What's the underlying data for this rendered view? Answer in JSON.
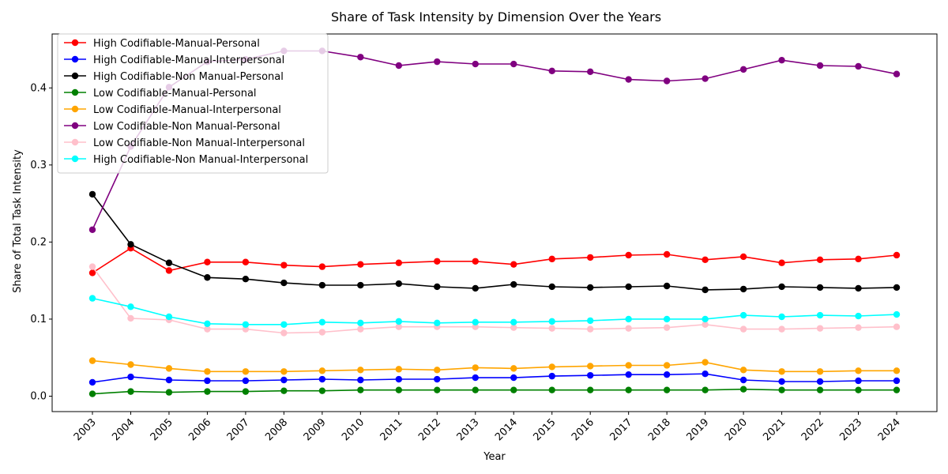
{
  "chart_data": {
    "type": "line",
    "title": "Share of Task Intensity by Dimension Over the Years",
    "xlabel": "Year",
    "ylabel": "Share of Total Task Intensity",
    "categories": [
      "2003",
      "2004",
      "2005",
      "2006",
      "2007",
      "2008",
      "2009",
      "2010",
      "2011",
      "2012",
      "2013",
      "2014",
      "2015",
      "2016",
      "2017",
      "2018",
      "2019",
      "2020",
      "2021",
      "2022",
      "2023",
      "2024"
    ],
    "ylim": [
      -0.02,
      0.47
    ],
    "yticks": [
      0.0,
      0.1,
      0.2,
      0.3,
      0.4
    ],
    "ytick_labels": [
      "0.0",
      "0.1",
      "0.2",
      "0.3",
      "0.4"
    ],
    "legend_position": "top-left",
    "grid": false,
    "series": [
      {
        "name": "High Codifiable-Manual-Personal",
        "color": "#ff0000",
        "values": [
          0.16,
          0.192,
          0.163,
          0.174,
          0.174,
          0.17,
          0.168,
          0.171,
          0.173,
          0.175,
          0.175,
          0.171,
          0.178,
          0.18,
          0.183,
          0.184,
          0.177,
          0.181,
          0.173,
          0.177,
          0.178,
          0.183
        ]
      },
      {
        "name": "High Codifiable-Manual-Interpersonal",
        "color": "#0000ff",
        "values": [
          0.018,
          0.025,
          0.021,
          0.02,
          0.02,
          0.021,
          0.022,
          0.021,
          0.022,
          0.022,
          0.024,
          0.024,
          0.026,
          0.027,
          0.028,
          0.028,
          0.029,
          0.021,
          0.019,
          0.019,
          0.02,
          0.02
        ]
      },
      {
        "name": "High Codifiable-Non Manual-Personal",
        "color": "#000000",
        "values": [
          0.262,
          0.197,
          0.173,
          0.154,
          0.152,
          0.147,
          0.144,
          0.144,
          0.146,
          0.142,
          0.14,
          0.145,
          0.142,
          0.141,
          0.142,
          0.143,
          0.138,
          0.139,
          0.142,
          0.141,
          0.14,
          0.141
        ]
      },
      {
        "name": "Low Codifiable-Manual-Personal",
        "color": "#008000",
        "values": [
          0.003,
          0.006,
          0.005,
          0.006,
          0.006,
          0.007,
          0.007,
          0.008,
          0.008,
          0.008,
          0.008,
          0.008,
          0.008,
          0.008,
          0.008,
          0.008,
          0.008,
          0.009,
          0.008,
          0.008,
          0.008,
          0.008
        ]
      },
      {
        "name": "Low Codifiable-Manual-Interpersonal",
        "color": "#ffa500",
        "values": [
          0.046,
          0.041,
          0.036,
          0.032,
          0.032,
          0.032,
          0.033,
          0.034,
          0.035,
          0.034,
          0.037,
          0.036,
          0.038,
          0.039,
          0.04,
          0.04,
          0.044,
          0.034,
          0.032,
          0.032,
          0.033,
          0.033
        ]
      },
      {
        "name": "Low Codifiable-Non Manual-Personal",
        "color": "#800080",
        "values": [
          0.216,
          0.324,
          0.401,
          0.434,
          0.437,
          0.448,
          0.448,
          0.44,
          0.429,
          0.434,
          0.431,
          0.431,
          0.422,
          0.421,
          0.411,
          0.409,
          0.412,
          0.424,
          0.436,
          0.429,
          0.428,
          0.418
        ]
      },
      {
        "name": "Low Codifiable-Non Manual-Interpersonal",
        "color": "#ffc0cb",
        "values": [
          0.168,
          0.101,
          0.099,
          0.087,
          0.087,
          0.082,
          0.083,
          0.087,
          0.09,
          0.09,
          0.09,
          0.089,
          0.088,
          0.087,
          0.088,
          0.089,
          0.093,
          0.087,
          0.087,
          0.088,
          0.089,
          0.09
        ]
      },
      {
        "name": "High Codifiable-Non Manual-Interpersonal",
        "color": "#00ffff",
        "values": [
          0.127,
          0.116,
          0.103,
          0.094,
          0.093,
          0.093,
          0.096,
          0.095,
          0.097,
          0.095,
          0.096,
          0.096,
          0.097,
          0.098,
          0.1,
          0.1,
          0.1,
          0.105,
          0.103,
          0.105,
          0.104,
          0.106
        ]
      }
    ]
  }
}
